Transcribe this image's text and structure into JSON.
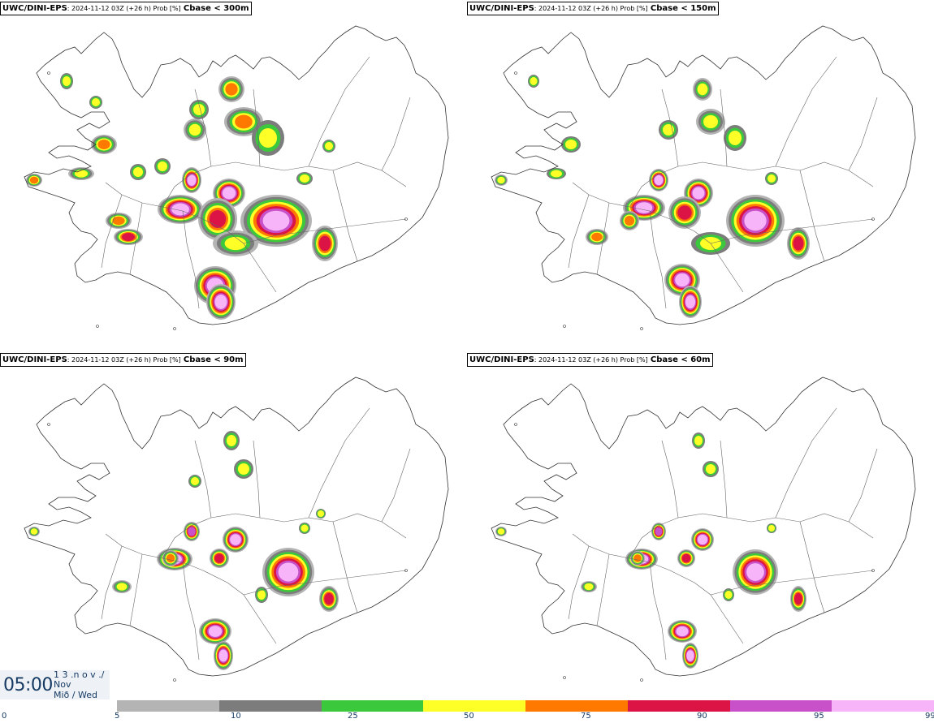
{
  "panels": [
    {
      "model": "UWC/DINI-EPS",
      "meta": ": 2024-11-12 03Z (+26 h) Prob [%]",
      "threshold": "Cbase < 300m"
    },
    {
      "model": "UWC/DINI-EPS",
      "meta": ": 2024-11-12 03Z (+26 h) Prob [%]",
      "threshold": "Cbase < 150m"
    },
    {
      "model": "UWC/DINI-EPS",
      "meta": ": 2024-11-12 03Z (+26 h) Prob [%]",
      "threshold": "Cbase < 90m"
    },
    {
      "model": "UWC/DINI-EPS",
      "meta": ": 2024-11-12 03Z (+26 h) Prob [%]",
      "threshold": "Cbase < 60m"
    }
  ],
  "clock": {
    "time": "05:00",
    "line1": "1 3 .n o v ./",
    "line2": "Nov",
    "line3": "Mið / Wed"
  },
  "legend": {
    "ticks": [
      "0",
      "5",
      "10",
      "25",
      "50",
      "75",
      "90",
      "95",
      "99"
    ],
    "colors": [
      "#b4b4b4",
      "#7c7c7c",
      "#3cc83c",
      "#ffff28",
      "#ff7800",
      "#dc1446",
      "#c850c8",
      "#f8b4f8"
    ]
  },
  "prob_colors": {
    "p5": "#b4b4b4",
    "p10": "#7c7c7c",
    "p25": "#3cc83c",
    "p50": "#ffff28",
    "p75": "#ff7800",
    "p90": "#dc1446",
    "p95": "#c850c8",
    "p99": "#f8b4f8"
  }
}
